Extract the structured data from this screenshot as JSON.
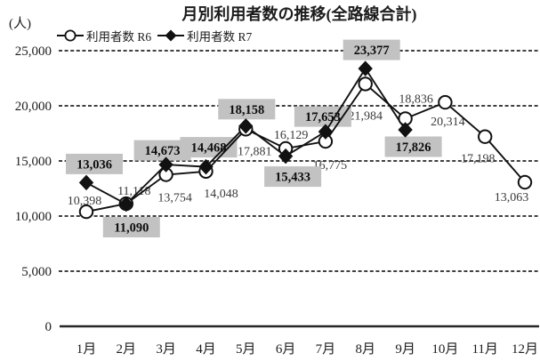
{
  "chart_data": {
    "type": "line",
    "title": "月別利用者数の推移(全路線合計)",
    "y_unit_label": "(人)",
    "categories": [
      "1月",
      "2月",
      "3月",
      "4月",
      "5月",
      "6月",
      "7月",
      "8月",
      "9月",
      "10月",
      "11月",
      "12月"
    ],
    "y_ticks": [
      0,
      5000,
      10000,
      15000,
      20000,
      25000
    ],
    "y_tick_labels": [
      "0",
      "5,000",
      "10,000",
      "15,000",
      "20,000",
      "25,000"
    ],
    "ylim": [
      0,
      25000
    ],
    "grid": "horizontal-dashed",
    "legend_position": "top-left-below-title",
    "colors": {
      "series_stroke": "#111111",
      "grid_line": "#262626",
      "r6_label_text": "#3a3a3a",
      "r7_label_box_bg": "#c2c2c2",
      "r7_label_text": "#0d0d0d"
    },
    "series": [
      {
        "id": "r6",
        "name": "利用者数  R6",
        "marker": "circle",
        "values": [
          10398,
          11118,
          13754,
          14048,
          17881,
          16129,
          16775,
          21984,
          18836,
          20314,
          17198,
          13063
        ],
        "labels": [
          "10,398",
          "11,118",
          "13,754",
          "14,048",
          "17,881",
          "16,129",
          "16,775",
          "21,984",
          "18,836",
          "20,314",
          "17,198",
          "13,063"
        ],
        "label_style": "plain",
        "label_offsets": [
          [
            -2,
            -8
          ],
          [
            9,
            -10
          ],
          [
            10,
            30
          ],
          [
            17,
            29
          ],
          [
            10,
            29
          ],
          [
            6,
            -11
          ],
          [
            5,
            31
          ],
          [
            0,
            40
          ],
          [
            12,
            -18
          ],
          [
            3,
            26
          ],
          [
            -8,
            29
          ],
          [
            -15,
            21
          ]
        ]
      },
      {
        "id": "r7",
        "name": "利用者数  R7",
        "marker": "diamond",
        "values": [
          13036,
          11090,
          14673,
          14468,
          18158,
          15433,
          17653,
          23377,
          17826
        ],
        "labels": [
          "13,036",
          "11,090",
          "14,673",
          "14,468",
          "18,158",
          "15,433",
          "17,653",
          "23,377",
          "17,826"
        ],
        "label_style": "gray-box",
        "label_offsets": [
          [
            9,
            -21
          ],
          [
            6,
            26
          ],
          [
            -4,
            -16
          ],
          [
            3,
            -22
          ],
          [
            1,
            -19
          ],
          [
            8,
            23
          ],
          [
            -3,
            -17
          ],
          [
            7,
            -21
          ],
          [
            9,
            19
          ]
        ]
      }
    ]
  }
}
